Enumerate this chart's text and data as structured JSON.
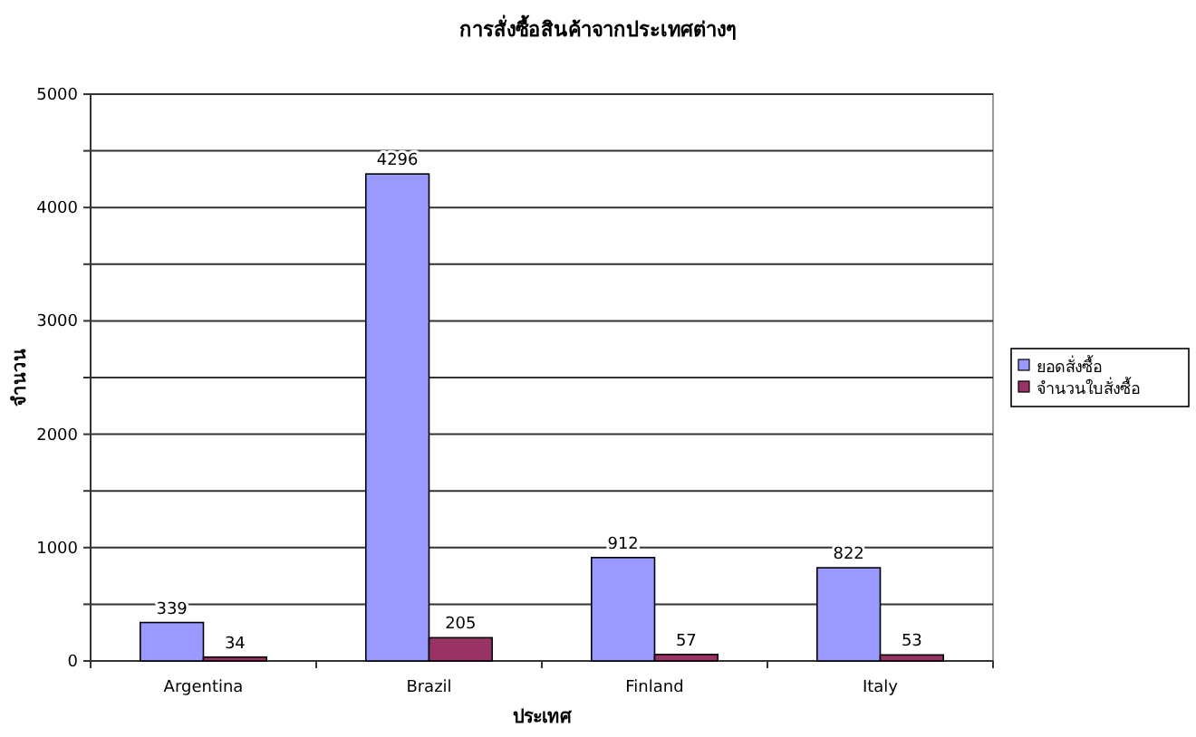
{
  "chart_data": {
    "type": "bar",
    "title": "การสั่งซื้อสินค้าจากประเทศต่างๆ",
    "xlabel": "ประเทศ",
    "ylabel": "จำนวน",
    "categories": [
      "Argentina",
      "Brazil",
      "Finland",
      "Italy"
    ],
    "series": [
      {
        "name": "ยอดสั่งซื้อ",
        "color": "#9999ff",
        "values": [
          339,
          4296,
          912,
          822
        ]
      },
      {
        "name": "จำนวนใบสั่งซื้อ",
        "color": "#993366",
        "values": [
          34,
          205,
          57,
          53
        ]
      }
    ],
    "ylim": [
      0,
      5000
    ],
    "yticks": [
      0,
      {
        "value": 500,
        "label": null
      },
      1000,
      {
        "value": 1500,
        "label": null
      },
      2000,
      {
        "value": 2500,
        "label": null
      },
      3000,
      {
        "value": 3500,
        "label": null
      },
      4000,
      {
        "value": 4500,
        "label": null
      },
      5000
    ],
    "grid": "y",
    "legend": "right",
    "data_labels": true
  }
}
